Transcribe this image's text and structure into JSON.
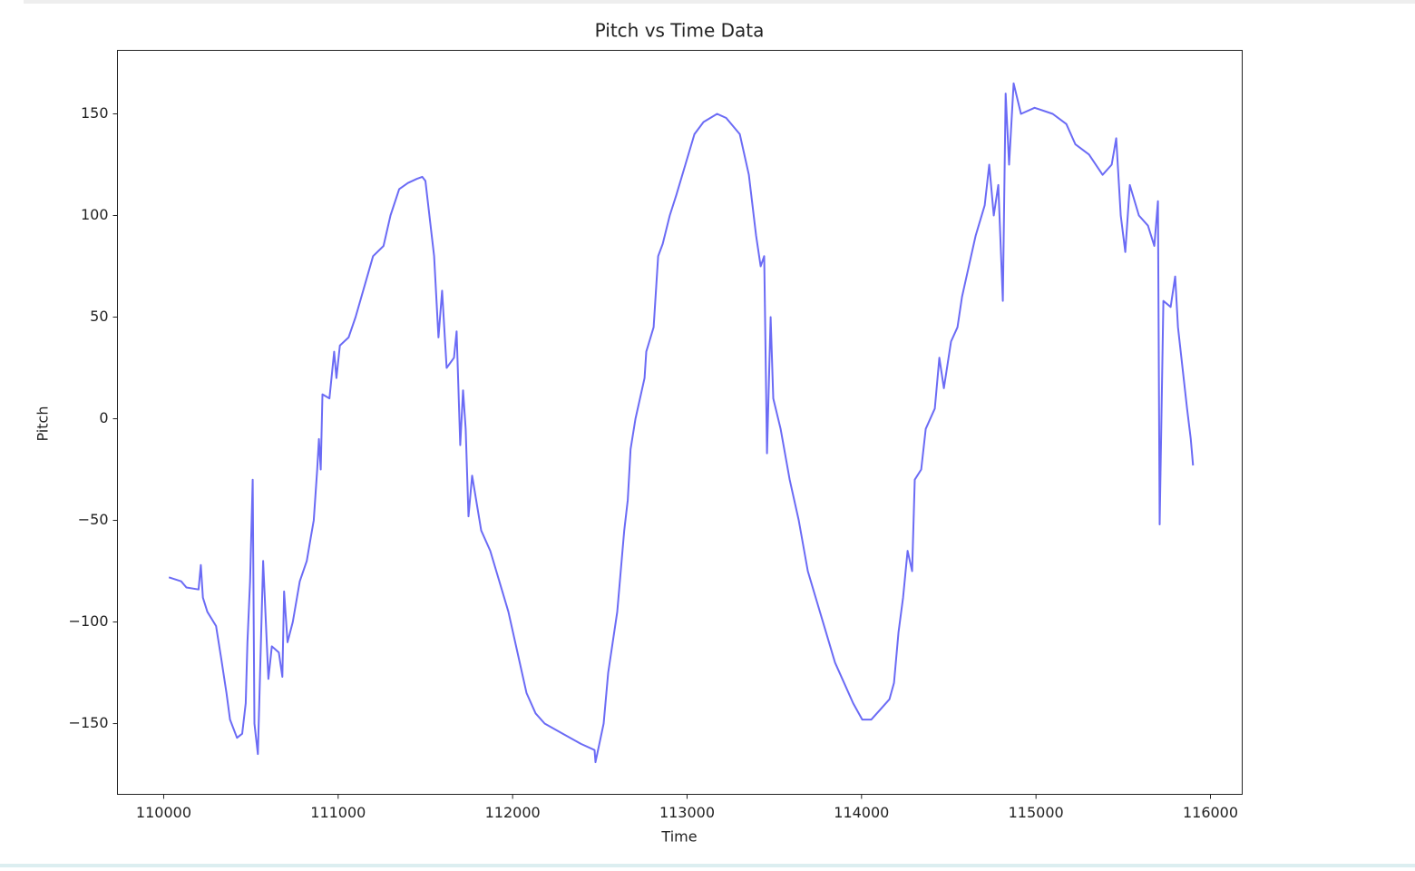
{
  "chart_data": {
    "type": "line",
    "title": "Pitch vs Time Data",
    "x_label": "Time",
    "y_label": "Pitch",
    "color": "#6b6bf5",
    "x": [
      110030,
      110100,
      110130,
      110200,
      110213,
      110225,
      110250,
      110300,
      110330,
      110360,
      110380,
      110420,
      110450,
      110470,
      110480,
      110495,
      110510,
      110520,
      110540,
      110570,
      110600,
      110620,
      110660,
      110680,
      110690,
      110710,
      110740,
      110780,
      110820,
      110840,
      110860,
      110880,
      110890,
      110900,
      110910,
      110950,
      110977,
      110990,
      111010,
      111060,
      111100,
      111160,
      111200,
      111260,
      111300,
      111350,
      111400,
      111450,
      111482,
      111500,
      111550,
      111575,
      111596,
      111622,
      111664,
      111679,
      111700,
      111716,
      111731,
      111747,
      111768,
      111820,
      111872,
      111924,
      111976,
      112028,
      112080,
      112132,
      112184,
      112288,
      112392,
      112470,
      112475,
      112522,
      112548,
      112600,
      112640,
      112660,
      112676,
      112704,
      112756,
      112766,
      112808,
      112834,
      112860,
      112901,
      112938,
      112990,
      113042,
      113094,
      113172,
      113224,
      113302,
      113354,
      113396,
      113422,
      113442,
      113458,
      113479,
      113494,
      113536,
      113588,
      113640,
      113692,
      113744,
      113796,
      113848,
      113900,
      113952,
      114004,
      114056,
      114108,
      114160,
      114186,
      114212,
      114238,
      114264,
      114290,
      114305,
      114342,
      114368,
      114420,
      114446,
      114472,
      114513,
      114550,
      114576,
      114602,
      114654,
      114706,
      114732,
      114758,
      114784,
      114810,
      114826,
      114846,
      114872,
      114914,
      114992,
      115096,
      115174,
      115226,
      115304,
      115382,
      115434,
      115460,
      115486,
      115512,
      115538,
      115590,
      115642,
      115678,
      115699,
      115709,
      115730,
      115772,
      115798,
      115814,
      115840,
      115866,
      115887,
      115900
    ],
    "values": [
      -78,
      -80,
      -83,
      -84,
      -72,
      -88,
      -95,
      -102,
      -118,
      -135,
      -148,
      -157,
      -155,
      -140,
      -110,
      -80,
      -30,
      -150,
      -165,
      -70,
      -128,
      -112,
      -115,
      -127,
      -85,
      -110,
      -100,
      -80,
      -70,
      -60,
      -50,
      -25,
      -10,
      -25,
      12,
      10,
      33,
      20,
      36,
      40,
      50,
      68,
      80,
      85,
      100,
      113,
      116,
      118,
      119,
      117,
      80,
      40,
      63,
      25,
      30,
      43,
      -13,
      14,
      -5,
      -48,
      -28,
      -55,
      -65,
      -80,
      -95,
      -115,
      -135,
      -145,
      -150,
      -155,
      -160,
      -163,
      -169,
      -150,
      -125,
      -95,
      -55,
      -40,
      -15,
      0,
      20,
      33,
      45,
      80,
      86,
      100,
      110,
      125,
      140,
      146,
      150,
      148,
      140,
      120,
      90,
      75,
      80,
      -17,
      50,
      10,
      -5,
      -30,
      -50,
      -75,
      -90,
      -105,
      -120,
      -130,
      -140,
      -148,
      -148,
      -143,
      -138,
      -130,
      -105,
      -88,
      -65,
      -75,
      -30,
      -25,
      -5,
      5,
      30,
      15,
      38,
      45,
      60,
      70,
      90,
      105,
      125,
      100,
      115,
      58,
      160,
      125,
      165,
      150,
      153,
      150,
      145,
      135,
      130,
      120,
      125,
      138,
      100,
      82,
      115,
      100,
      95,
      85,
      107,
      -52,
      58,
      55,
      70,
      45,
      25,
      5,
      -10,
      -23
    ],
    "xlim": [
      109735,
      116182
    ],
    "ylim": [
      -184.8,
      181.25
    ],
    "xticks": [
      110000,
      111000,
      112000,
      113000,
      114000,
      115000,
      116000
    ],
    "yticks": [
      {
        "value": -150,
        "label": "−150"
      },
      {
        "value": -100,
        "label": "−100"
      },
      {
        "value": -50,
        "label": "−50"
      },
      0,
      50,
      100,
      150
    ]
  }
}
